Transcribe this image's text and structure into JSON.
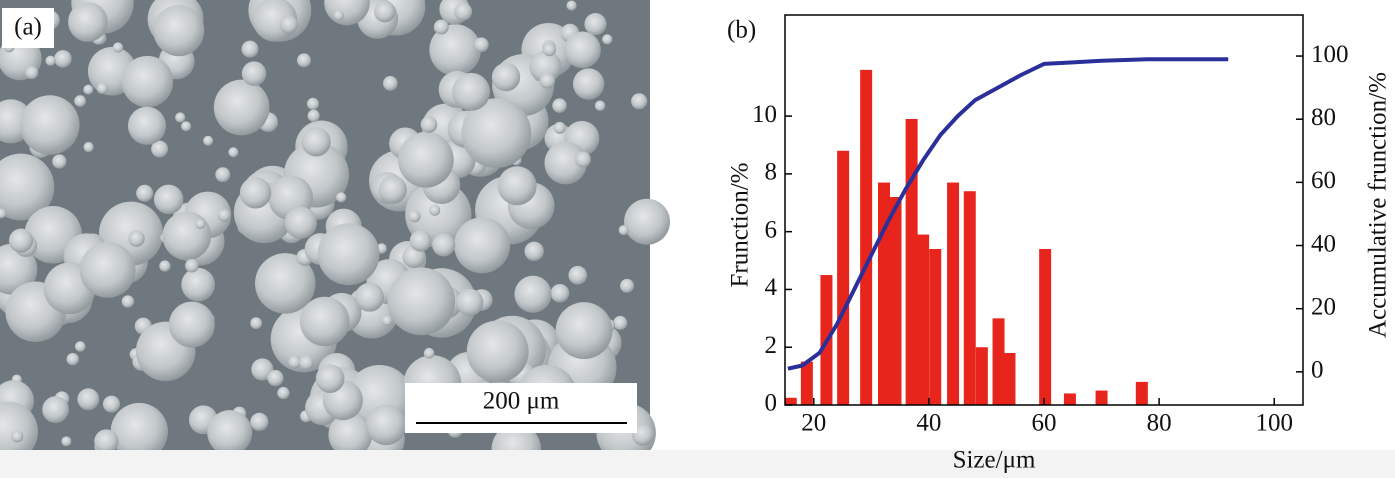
{
  "panel_a": {
    "label": "(a)",
    "scale_bar": "200 μm"
  },
  "chart_data": {
    "type": "bar",
    "panel_label": "(b)",
    "x_label": "Size/μm",
    "y_label": "Frunction/%",
    "y2_label": "Accumulative frunction/%",
    "xlim": [
      15,
      105
    ],
    "xticks": [
      20,
      40,
      60,
      80,
      100
    ],
    "ylim": [
      0,
      13.5
    ],
    "yticks": [
      0,
      2,
      4,
      6,
      8,
      10
    ],
    "y2lim": [
      -10.5,
      113
    ],
    "y2ticks": [
      0,
      20,
      40,
      60,
      80,
      100
    ],
    "series": [
      {
        "type": "bar",
        "color": "#e8251c",
        "x": [
          16,
          18.8,
          22.2,
          25.1,
          29.1,
          32.2,
          34.2,
          37,
          39,
          41.1,
          44.2,
          47.1,
          49.2,
          52.1,
          54,
          60.2,
          64.5,
          70,
          77
        ],
        "values": [
          0.25,
          1.5,
          4.5,
          8.8,
          11.6,
          7.7,
          7.2,
          9.9,
          5.9,
          5.4,
          7.7,
          7.4,
          2.0,
          3.0,
          1.8,
          5.4,
          0.4,
          0.5,
          0.8
        ]
      },
      {
        "type": "line",
        "axis": "y2",
        "color": "#2b2f9a",
        "x": [
          15.5,
          18,
          21,
          24,
          27,
          30,
          33,
          36,
          39,
          42,
          45,
          48,
          52,
          56,
          60,
          65,
          70,
          78,
          92
        ],
        "values": [
          1,
          2,
          6,
          15,
          26,
          37,
          48,
          58,
          67,
          75,
          81,
          86,
          90,
          94,
          97.5,
          98,
          98.5,
          99,
          99
        ]
      }
    ]
  }
}
